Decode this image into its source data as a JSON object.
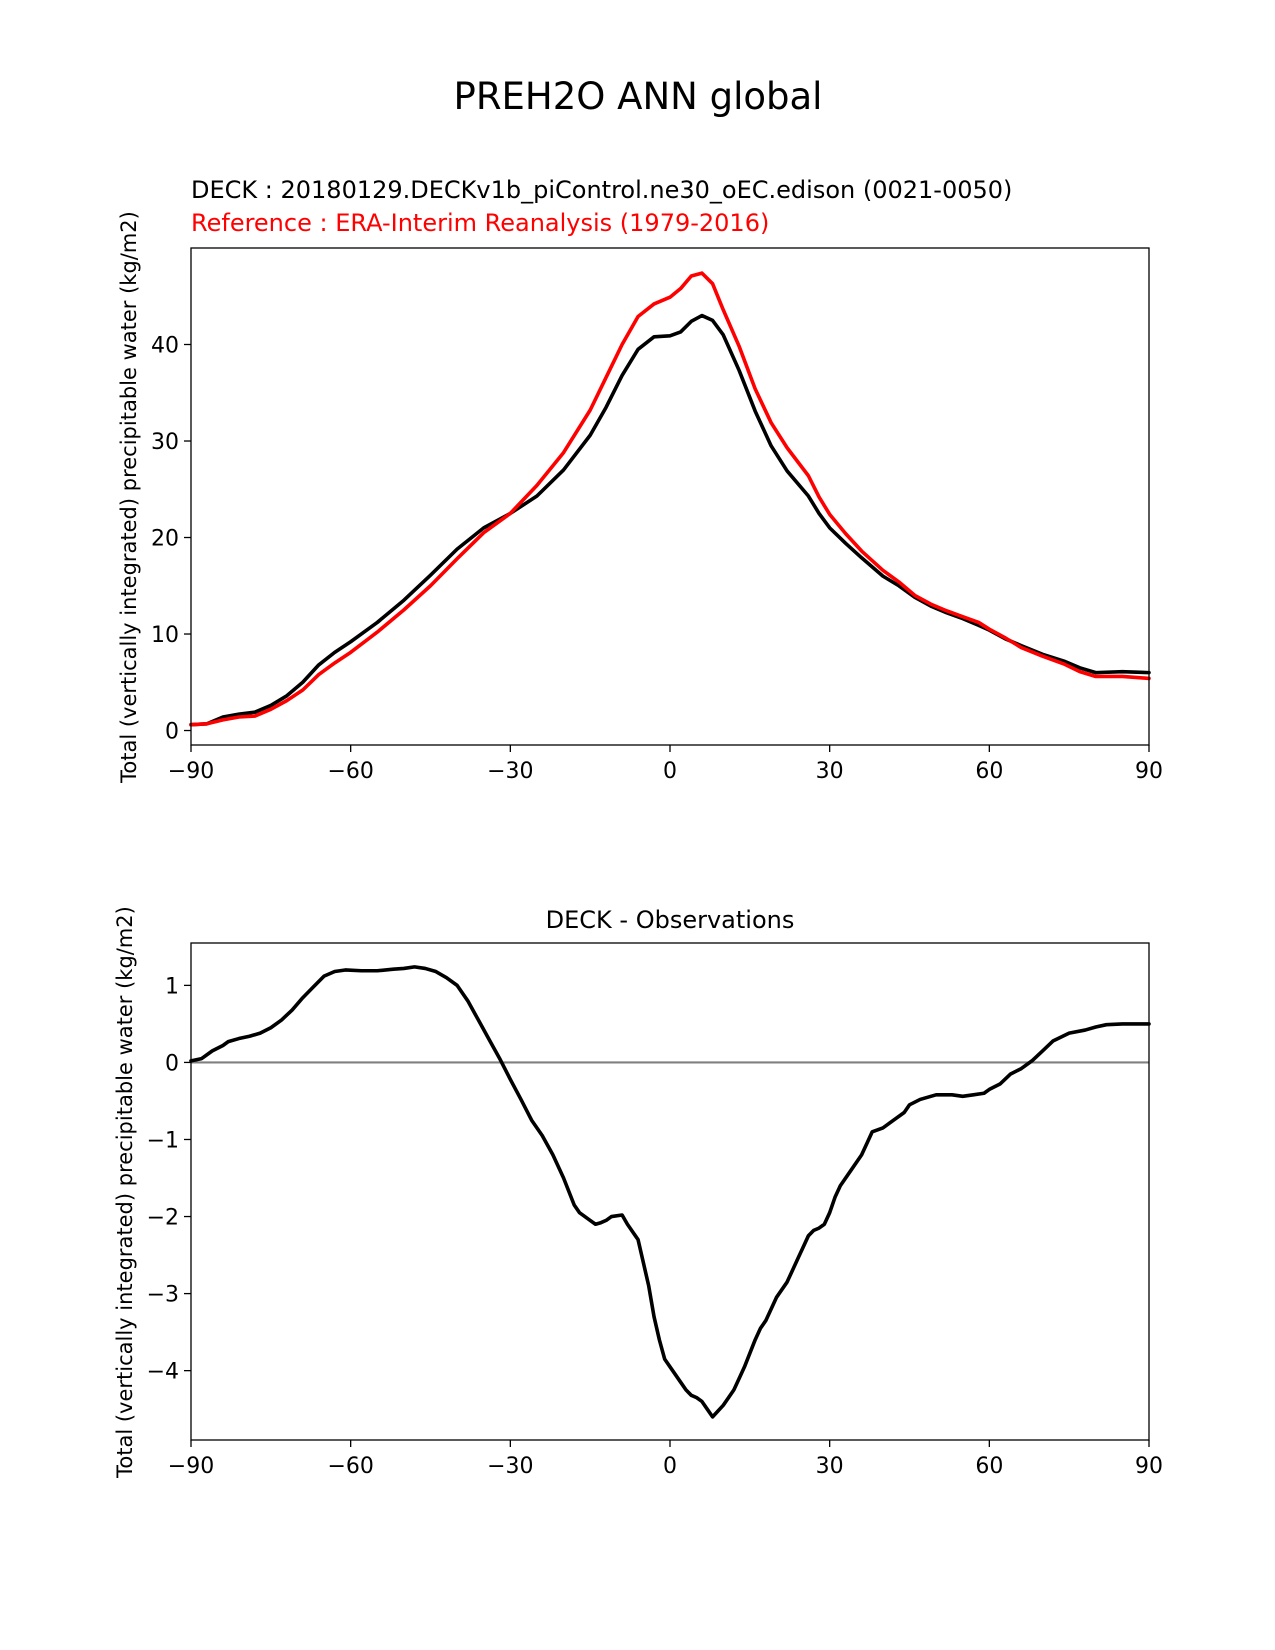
{
  "figure": {
    "title": "PREH2O ANN global"
  },
  "colors": {
    "test": "#000000",
    "reference": "#ff0000",
    "zero_line": "#808080",
    "axes": "#000000"
  },
  "chart_data": [
    {
      "type": "line",
      "title_test": "DECK : 20180129.DECKv1b_piControl.ne30_oEC.edison (0021-0050)",
      "title_reference": "Reference : ERA-Interim Reanalysis (1979-2016)",
      "xlabel": "",
      "ylabel": "Total (vertically integrated) precipitable water (kg/m2)",
      "xlim": [
        -90,
        90
      ],
      "ylim": [
        -1.5,
        50
      ],
      "xticks": [
        -90,
        -60,
        -30,
        0,
        30,
        60,
        90
      ],
      "xtick_labels": [
        "−90",
        "−60",
        "−30",
        "0",
        "30",
        "60",
        "90"
      ],
      "yticks": [
        0,
        10,
        20,
        30,
        40
      ],
      "ytick_labels": [
        "0",
        "10",
        "20",
        "30",
        "40"
      ],
      "series": [
        {
          "name": "DECK",
          "color": "#000000",
          "x": [
            -90,
            -87,
            -84,
            -81,
            -78,
            -75,
            -72,
            -69,
            -66,
            -63,
            -60,
            -55,
            -50,
            -45,
            -40,
            -35,
            -30,
            -25,
            -20,
            -15,
            -12,
            -9,
            -6,
            -3,
            0,
            2,
            4,
            6,
            8,
            10,
            13,
            16,
            19,
            22,
            26,
            28,
            30,
            33,
            36,
            40,
            43,
            46,
            49,
            52,
            55,
            58,
            60,
            63,
            66,
            70,
            74,
            77,
            80,
            85,
            90
          ],
          "values": [
            0.6,
            0.7,
            1.4,
            1.7,
            1.9,
            2.6,
            3.6,
            5.0,
            6.8,
            8.1,
            9.2,
            11.2,
            13.5,
            16.1,
            18.8,
            21.0,
            22.5,
            24.3,
            27.0,
            30.6,
            33.5,
            36.8,
            39.5,
            40.8,
            40.9,
            41.3,
            42.4,
            43.0,
            42.5,
            41.0,
            37.3,
            33.1,
            29.5,
            26.9,
            24.3,
            22.5,
            21.0,
            19.4,
            17.9,
            16.0,
            15.0,
            13.8,
            12.9,
            12.2,
            11.6,
            10.9,
            10.4,
            9.5,
            8.8,
            7.9,
            7.2,
            6.5,
            6.0,
            6.1,
            6.0
          ]
        },
        {
          "name": "ERA-Interim Reanalysis",
          "color": "#ff0000",
          "x": [
            -90,
            -87,
            -84,
            -81,
            -78,
            -75,
            -72,
            -69,
            -66,
            -63,
            -60,
            -55,
            -50,
            -45,
            -40,
            -35,
            -30,
            -25,
            -20,
            -15,
            -12,
            -9,
            -6,
            -3,
            0,
            2,
            4,
            6,
            8,
            10,
            13,
            16,
            19,
            22,
            26,
            28,
            30,
            33,
            36,
            40,
            43,
            46,
            49,
            52,
            55,
            58,
            60,
            63,
            66,
            70,
            74,
            77,
            80,
            85,
            90
          ],
          "values": [
            0.6,
            0.7,
            1.1,
            1.4,
            1.5,
            2.2,
            3.1,
            4.2,
            5.8,
            7.0,
            8.1,
            10.2,
            12.5,
            15.0,
            17.8,
            20.5,
            22.5,
            25.4,
            28.8,
            33.2,
            36.6,
            40.0,
            42.9,
            44.2,
            44.9,
            45.8,
            47.1,
            47.4,
            46.3,
            43.6,
            39.8,
            35.4,
            31.9,
            29.3,
            26.4,
            24.2,
            22.4,
            20.4,
            18.6,
            16.6,
            15.4,
            14.0,
            13.1,
            12.4,
            11.8,
            11.2,
            10.5,
            9.6,
            8.6,
            7.7,
            6.9,
            6.1,
            5.6,
            5.6,
            5.4
          ]
        }
      ]
    },
    {
      "type": "line",
      "title": "DECK - Observations",
      "xlabel": "",
      "ylabel": "Total (vertically integrated) precipitable water (kg/m2)",
      "xlim": [
        -90,
        90
      ],
      "ylim": [
        -4.9,
        1.55
      ],
      "xticks": [
        -90,
        -60,
        -30,
        0,
        30,
        60,
        90
      ],
      "xtick_labels": [
        "−90",
        "−60",
        "−30",
        "0",
        "30",
        "60",
        "90"
      ],
      "yticks": [
        -4,
        -3,
        -2,
        -1,
        0,
        1
      ],
      "ytick_labels": [
        "−4",
        "−3",
        "−2",
        "−1",
        "0",
        "1"
      ],
      "zero_line": 0,
      "series": [
        {
          "name": "DECK - Observations",
          "color": "#000000",
          "x": [
            -90,
            -88,
            -86,
            -84,
            -83,
            -81,
            -79,
            -77,
            -75,
            -73,
            -71,
            -69,
            -67,
            -65,
            -63,
            -61,
            -58,
            -55,
            -52,
            -50,
            -48,
            -46,
            -44,
            -42,
            -40,
            -38,
            -36,
            -34,
            -32,
            -30,
            -28,
            -26,
            -24,
            -22,
            -20,
            -18,
            -17,
            -16,
            -15,
            -14,
            -13,
            -12,
            -11,
            -9,
            -8,
            -6,
            -5,
            -4,
            -3,
            -2,
            -1,
            0,
            2,
            3,
            4,
            5,
            6,
            7,
            8,
            10,
            12,
            13,
            14,
            16,
            17,
            18,
            20,
            22,
            23,
            24,
            25,
            26,
            27,
            28,
            29,
            30,
            31,
            32,
            34,
            36,
            37,
            38,
            40,
            41,
            42,
            44,
            45,
            47,
            50,
            53,
            55,
            57,
            59,
            60,
            62,
            64,
            66,
            68,
            70,
            72,
            75,
            78,
            80,
            82,
            85,
            88,
            90
          ],
          "values": [
            0.02,
            0.05,
            0.15,
            0.22,
            0.27,
            0.31,
            0.34,
            0.38,
            0.45,
            0.55,
            0.68,
            0.84,
            0.98,
            1.12,
            1.18,
            1.2,
            1.19,
            1.19,
            1.21,
            1.22,
            1.24,
            1.22,
            1.18,
            1.1,
            1.0,
            0.8,
            0.55,
            0.3,
            0.05,
            -0.22,
            -0.48,
            -0.75,
            -0.95,
            -1.2,
            -1.5,
            -1.85,
            -1.95,
            -2.0,
            -2.05,
            -2.1,
            -2.08,
            -2.05,
            -2.0,
            -1.98,
            -2.1,
            -2.3,
            -2.6,
            -2.9,
            -3.3,
            -3.6,
            -3.85,
            -3.95,
            -4.15,
            -4.25,
            -4.32,
            -4.35,
            -4.4,
            -4.5,
            -4.6,
            -4.45,
            -4.25,
            -4.1,
            -3.95,
            -3.6,
            -3.45,
            -3.35,
            -3.05,
            -2.85,
            -2.7,
            -2.55,
            -2.4,
            -2.25,
            -2.18,
            -2.15,
            -2.1,
            -1.95,
            -1.75,
            -1.6,
            -1.4,
            -1.2,
            -1.05,
            -0.9,
            -0.85,
            -0.8,
            -0.75,
            -0.65,
            -0.55,
            -0.48,
            -0.42,
            -0.42,
            -0.44,
            -0.42,
            -0.4,
            -0.35,
            -0.28,
            -0.15,
            -0.08,
            0.02,
            0.15,
            0.28,
            0.38,
            0.42,
            0.46,
            0.49,
            0.5,
            0.5,
            0.5
          ]
        }
      ]
    }
  ]
}
